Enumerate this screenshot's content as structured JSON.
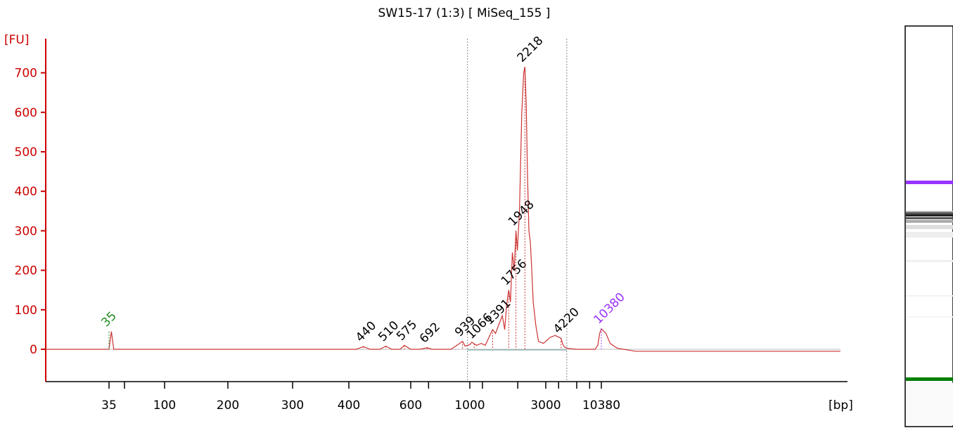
{
  "chart_data": {
    "type": "line",
    "title": "SW15-17 (1:3)  [ MiSeq_155 ]",
    "ylabel": "[FU]",
    "xlabel": "[bp]",
    "ylim": [
      -80,
      780
    ],
    "y_ticks": [
      0,
      100,
      200,
      300,
      400,
      500,
      600,
      700
    ],
    "x_ticks": [
      "35",
      "100",
      "200",
      "300",
      "400",
      "600",
      "1000",
      "3000",
      "10380"
    ],
    "series": [
      {
        "color": "#cc3333",
        "x": [
          20,
          35,
          37,
          39,
          50,
          100,
          200,
          300,
          420,
          440,
          460,
          490,
          510,
          530,
          560,
          575,
          600,
          650,
          692,
          720,
          850,
          939,
          960,
          1000,
          1030,
          1066,
          1100,
          1180,
          1250,
          1391,
          1450,
          1530,
          1600,
          1656,
          1700,
          1756,
          1800,
          1850,
          1900,
          1948,
          1990,
          2050,
          2120,
          2180,
          2218,
          2260,
          2300,
          2350,
          2400,
          2450,
          2500,
          2600,
          2700,
          2900,
          3300,
          3700,
          4220,
          4400,
          4600,
          5000,
          6000,
          7000,
          8000,
          9000,
          9600,
          10000,
          10380,
          10700,
          11000,
          11500,
          12000,
          13000,
          14000,
          16000,
          18000,
          20000,
          30000,
          50000
        ],
        "values": [
          0,
          0,
          45,
          0,
          0,
          0,
          0,
          0,
          0,
          7,
          0,
          0,
          8,
          0,
          0,
          10,
          0,
          0,
          4,
          0,
          0,
          20,
          8,
          12,
          18,
          14,
          10,
          15,
          10,
          50,
          40,
          65,
          85,
          50,
          110,
          150,
          120,
          245,
          200,
          300,
          250,
          350,
          600,
          700,
          715,
          620,
          450,
          300,
          270,
          200,
          120,
          60,
          20,
          15,
          30,
          35,
          28,
          12,
          5,
          2,
          0,
          0,
          0,
          0,
          10,
          40,
          52,
          40,
          15,
          3,
          0,
          -5,
          -5,
          -5,
          -5,
          -5,
          -5,
          -5
        ]
      }
    ],
    "peak_labels": [
      {
        "bp": 35,
        "fu": 45,
        "text": "35",
        "color": "#228b22"
      },
      {
        "bp": 440,
        "fu": 7,
        "text": "440",
        "color": "#000000"
      },
      {
        "bp": 510,
        "fu": 8,
        "text": "510",
        "color": "#000000"
      },
      {
        "bp": 575,
        "fu": 10,
        "text": "575",
        "color": "#000000"
      },
      {
        "bp": 692,
        "fu": 4,
        "text": "692",
        "color": "#000000"
      },
      {
        "bp": 939,
        "fu": 20,
        "text": "939",
        "color": "#000000"
      },
      {
        "bp": 1066,
        "fu": 14,
        "text": "1066",
        "color": "#000000"
      },
      {
        "bp": 1391,
        "fu": 50,
        "text": "1391",
        "color": "#000000"
      },
      {
        "bp": 1756,
        "fu": 150,
        "text": "1756",
        "color": "#000000"
      },
      {
        "bp": 1948,
        "fu": 300,
        "text": "1948",
        "color": "#000000"
      },
      {
        "bp": 2218,
        "fu": 715,
        "text": "2218",
        "color": "#000000"
      },
      {
        "bp": 4220,
        "fu": 28,
        "text": "4220",
        "color": "#000000"
      },
      {
        "bp": 10380,
        "fu": 52,
        "text": "10380",
        "color": "#9933ff"
      }
    ],
    "region_bounds_bp": [
      980,
      4800
    ],
    "grid": false,
    "axis_color": "#cc0000",
    "line_color": "#cc3333",
    "gel_marker_colors": {
      "upper": "#9933ff",
      "lower": "#008000"
    }
  }
}
